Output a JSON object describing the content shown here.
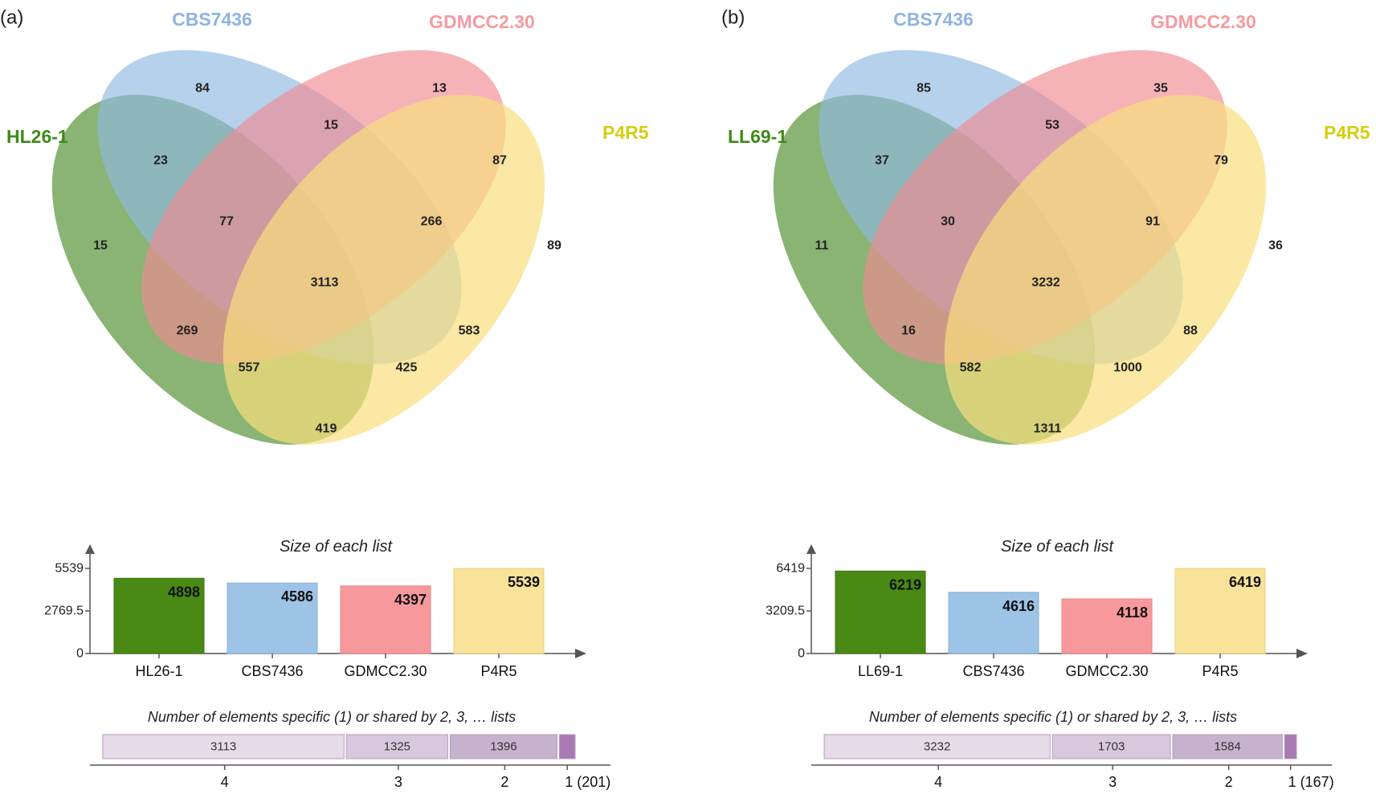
{
  "chart_data": [
    {
      "type": "venn",
      "panel_label": "(a)",
      "sets": [
        "HL26-1",
        "CBS7436",
        "GDMCC2.30",
        "P4R5"
      ],
      "set_colors": [
        "#4a8c2a",
        "#8fb8e0",
        "#f08a92",
        "#f8de7e"
      ],
      "set_label_colors": [
        "#3f8a1a",
        "#8fb3e0",
        "#f59aa0",
        "#d6cd10"
      ],
      "regions": [
        {
          "sets": [
            "CBS7436"
          ],
          "value": 84
        },
        {
          "sets": [
            "GDMCC2.30"
          ],
          "value": 13
        },
        {
          "sets": [
            "CBS7436",
            "GDMCC2.30"
          ],
          "value": 15
        },
        {
          "sets": [
            "HL26-1",
            "CBS7436"
          ],
          "value": 23
        },
        {
          "sets": [
            "GDMCC2.30",
            "P4R5"
          ],
          "value": 87
        },
        {
          "sets": [
            "HL26-1",
            "CBS7436",
            "GDMCC2.30"
          ],
          "value": 77
        },
        {
          "sets": [
            "CBS7436",
            "GDMCC2.30",
            "P4R5"
          ],
          "value": 266
        },
        {
          "sets": [
            "HL26-1"
          ],
          "value": 15
        },
        {
          "sets": [
            "P4R5"
          ],
          "value": 89
        },
        {
          "sets": [
            "HL26-1",
            "CBS7436",
            "GDMCC2.30",
            "P4R5"
          ],
          "value": 3113
        },
        {
          "sets": [
            "HL26-1",
            "GDMCC2.30"
          ],
          "value": 269
        },
        {
          "sets": [
            "CBS7436",
            "P4R5"
          ],
          "value": 583
        },
        {
          "sets": [
            "HL26-1",
            "GDMCC2.30",
            "P4R5"
          ],
          "value": 557
        },
        {
          "sets": [
            "HL26-1",
            "CBS7436",
            "P4R5"
          ],
          "value": 425
        },
        {
          "sets": [
            "HL26-1",
            "P4R5"
          ],
          "value": 419
        }
      ],
      "list_sizes": {
        "title": "Size of each list",
        "categories": [
          "HL26-1",
          "CBS7436",
          "GDMCC2.30",
          "P4R5"
        ],
        "values": [
          4898,
          4586,
          4397,
          5539
        ],
        "bar_labels": [
          "4898",
          "4586",
          "4397",
          "5539"
        ],
        "y_ticks": [
          "5539",
          "2769.5",
          "0"
        ],
        "ylim": [
          0,
          5539
        ]
      },
      "shared": {
        "title": "Number of elements specific (1) or shared by 2, 3, … lists",
        "segments": [
          {
            "level": "4",
            "value": 3113,
            "label": "3113"
          },
          {
            "level": "3",
            "value": 1325,
            "label": "1325"
          },
          {
            "level": "2",
            "value": 1396,
            "label": "1396"
          },
          {
            "level": "1 (201)",
            "value": 201,
            "label": ""
          }
        ]
      }
    },
    {
      "type": "venn",
      "panel_label": "(b)",
      "sets": [
        "LL69-1",
        "CBS7436",
        "GDMCC2.30",
        "P4R5"
      ],
      "set_colors": [
        "#4a8c2a",
        "#8fb8e0",
        "#f08a92",
        "#f8de7e"
      ],
      "set_label_colors": [
        "#3f8a1a",
        "#8fb3e0",
        "#f59aa0",
        "#d6cd10"
      ],
      "regions": [
        {
          "sets": [
            "CBS7436"
          ],
          "value": 85
        },
        {
          "sets": [
            "GDMCC2.30"
          ],
          "value": 35
        },
        {
          "sets": [
            "CBS7436",
            "GDMCC2.30"
          ],
          "value": 53
        },
        {
          "sets": [
            "LL69-1",
            "CBS7436"
          ],
          "value": 37
        },
        {
          "sets": [
            "GDMCC2.30",
            "P4R5"
          ],
          "value": 79
        },
        {
          "sets": [
            "LL69-1",
            "CBS7436",
            "GDMCC2.30"
          ],
          "value": 30
        },
        {
          "sets": [
            "CBS7436",
            "GDMCC2.30",
            "P4R5"
          ],
          "value": 91
        },
        {
          "sets": [
            "LL69-1"
          ],
          "value": 11
        },
        {
          "sets": [
            "P4R5"
          ],
          "value": 36
        },
        {
          "sets": [
            "LL69-1",
            "CBS7436",
            "GDMCC2.30",
            "P4R5"
          ],
          "value": 3232
        },
        {
          "sets": [
            "LL69-1",
            "GDMCC2.30"
          ],
          "value": 16
        },
        {
          "sets": [
            "CBS7436",
            "P4R5"
          ],
          "value": 88
        },
        {
          "sets": [
            "LL69-1",
            "GDMCC2.30",
            "P4R5"
          ],
          "value": 582
        },
        {
          "sets": [
            "LL69-1",
            "CBS7436",
            "P4R5"
          ],
          "value": 1000
        },
        {
          "sets": [
            "LL69-1",
            "P4R5"
          ],
          "value": 1311
        }
      ],
      "list_sizes": {
        "title": "Size of each list",
        "categories": [
          "LL69-1",
          "CBS7436",
          "GDMCC2.30",
          "P4R5"
        ],
        "values": [
          6219,
          4616,
          4118,
          6419
        ],
        "bar_labels": [
          "6219",
          "4616",
          "4118",
          "6419"
        ],
        "y_ticks": [
          "6419",
          "3209.5",
          "0"
        ],
        "ylim": [
          0,
          6419
        ]
      },
      "shared": {
        "title": "Number of elements specific (1) or shared by 2, 3, … lists",
        "segments": [
          {
            "level": "4",
            "value": 3232,
            "label": "3232"
          },
          {
            "level": "3",
            "value": 1703,
            "label": "1703"
          },
          {
            "level": "2",
            "value": 1584,
            "label": "1584"
          },
          {
            "level": "1 (167)",
            "value": 167,
            "label": ""
          }
        ]
      }
    }
  ]
}
